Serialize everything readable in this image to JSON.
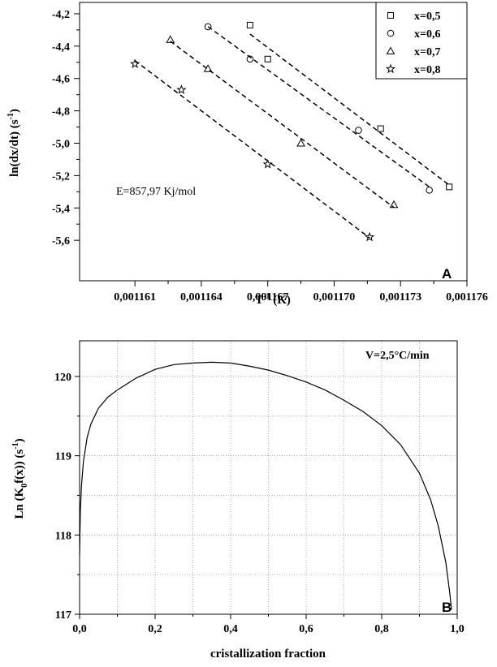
{
  "chart_data": [
    {
      "type": "scatter",
      "panel_label": "A",
      "xlabel_main": "T",
      "xlabel_sup": "-1",
      "xlabel_rest": " (K)",
      "ylabel_main": "ln(dx/dt) (s",
      "ylabel_sup": "-1",
      "ylabel_rest": ")",
      "xlim": [
        0.0011585,
        0.001176
      ],
      "ylim": [
        -5.85,
        -4.13
      ],
      "x_ticks": [
        0.001161,
        0.001164,
        0.001167,
        0.00117,
        0.001173,
        0.001176
      ],
      "x_tick_labels": [
        "0,001161",
        "0,001164",
        "0,001167",
        "0,001170",
        "0,001173",
        "0,001176"
      ],
      "y_ticks": [
        -4.2,
        -4.4,
        -4.6,
        -4.8,
        -5.0,
        -5.2,
        -5.4,
        -5.6
      ],
      "y_tick_labels": [
        "-4,2",
        "-4,4",
        "-4,6",
        "-4,8",
        "-5,0",
        "-5,2",
        "-5,4",
        "-5,6"
      ],
      "annotation": "E=857,97 Kj/mol",
      "legend_position": "top-right",
      "series": [
        {
          "name": "x=0,5",
          "marker": "square",
          "x": [
            0.0011662,
            0.001167,
            0.0011721,
            0.0011752
          ],
          "y": [
            -4.27,
            -4.48,
            -4.91,
            -5.27
          ]
        },
        {
          "name": "x=0,6",
          "marker": "circle",
          "x": [
            0.0011643,
            0.0011662,
            0.0011711,
            0.0011743
          ],
          "y": [
            -4.28,
            -4.48,
            -4.92,
            -5.29
          ]
        },
        {
          "name": "x=0,7",
          "marker": "triangle",
          "x": [
            0.0011626,
            0.0011643,
            0.0011685,
            0.0011727
          ],
          "y": [
            -4.36,
            -4.54,
            -5.0,
            -5.38
          ]
        },
        {
          "name": "x=0,8",
          "marker": "star",
          "x": [
            0.001161,
            0.0011631,
            0.001167,
            0.0011716
          ],
          "y": [
            -4.51,
            -4.67,
            -5.13,
            -5.58
          ]
        }
      ]
    },
    {
      "type": "line",
      "panel_label": "B",
      "annotation": "V=2,5°C/min",
      "xlabel": "cristallization fraction",
      "ylabel_main": "Ln (K",
      "ylabel_sub": "0",
      "ylabel_mid": "f(x)) (s",
      "ylabel_sup": "-1",
      "ylabel_rest": ")",
      "xlim": [
        0,
        1.0
      ],
      "ylim": [
        117,
        120.45
      ],
      "x_ticks": [
        0,
        0.2,
        0.4,
        0.6,
        0.8,
        1.0
      ],
      "x_tick_labels": [
        "0,0",
        "0,2",
        "0,4",
        "0,6",
        "0,8",
        "1,0"
      ],
      "y_ticks": [
        117,
        118,
        119,
        120
      ],
      "y_tick_labels": [
        "117",
        "118",
        "119",
        "120"
      ],
      "grid": true,
      "series": [
        {
          "x": [
            0.0,
            0.002,
            0.005,
            0.01,
            0.02,
            0.03,
            0.05,
            0.075,
            0.1,
            0.15,
            0.2,
            0.25,
            0.3,
            0.35,
            0.4,
            0.45,
            0.5,
            0.55,
            0.6,
            0.65,
            0.7,
            0.75,
            0.8,
            0.85,
            0.9,
            0.93,
            0.95,
            0.97,
            0.98,
            0.985
          ],
          "y": [
            117.75,
            118.3,
            118.62,
            118.92,
            119.23,
            119.4,
            119.6,
            119.74,
            119.83,
            119.98,
            120.09,
            120.15,
            120.17,
            120.18,
            120.17,
            120.13,
            120.08,
            120.01,
            119.93,
            119.83,
            119.7,
            119.56,
            119.38,
            119.14,
            118.78,
            118.44,
            118.11,
            117.65,
            117.28,
            117.06
          ]
        }
      ]
    }
  ]
}
